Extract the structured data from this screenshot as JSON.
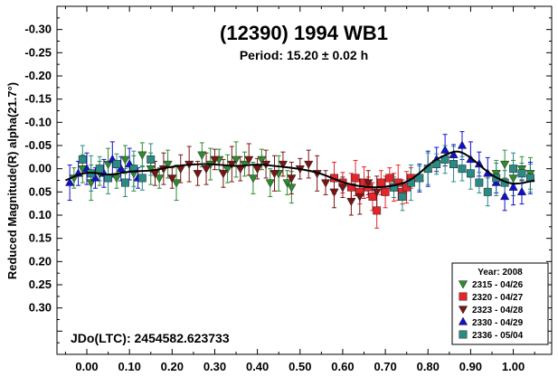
{
  "chart_data": {
    "type": "scatter",
    "title": "(12390) 1994 WB1",
    "subtitle": "Period: 15.20 ± 0.02 h",
    "ylabel": "Reduced Magnitude(R) alpha(21.7°)",
    "xlabel": "",
    "annotation": "JDo(LTC): 2454582.623733",
    "xlim": [
      -0.07,
      1.09
    ],
    "ylim": [
      -0.35,
      0.4
    ],
    "y_inverted": true,
    "x_ticks": [
      "0.00",
      "0.10",
      "0.20",
      "0.30",
      "0.40",
      "0.50",
      "0.60",
      "0.70",
      "0.80",
      "0.90",
      "1.00"
    ],
    "y_ticks": [
      "-0.30",
      "-0.25",
      "-0.20",
      "-0.15",
      "-0.10",
      "-0.05",
      "0.00",
      "0.05",
      "0.10",
      "0.15",
      "0.20",
      "0.25",
      "0.30"
    ],
    "grid": false,
    "legend_placement": "bottom-right",
    "legend_title": "Year: 2008",
    "series": [
      {
        "name": "2315 - 04/26",
        "marker": "triangle-down",
        "color": "#2e8b2e",
        "points": [
          [
            -0.03,
            0.02
          ],
          [
            -0.01,
            0.0
          ],
          [
            0.01,
            0.03
          ],
          [
            0.03,
            0.01
          ],
          [
            0.05,
            -0.01
          ],
          [
            0.07,
            0.02
          ],
          [
            0.09,
            -0.02
          ],
          [
            0.11,
            0.01
          ],
          [
            0.13,
            -0.03
          ],
          [
            0.15,
            0.0
          ],
          [
            0.17,
            0.02
          ],
          [
            0.19,
            -0.01
          ],
          [
            0.21,
            0.03
          ],
          [
            0.27,
            -0.03
          ],
          [
            0.29,
            -0.01
          ],
          [
            0.31,
            -0.02
          ],
          [
            0.33,
            0.0
          ],
          [
            0.35,
            -0.02
          ],
          [
            0.37,
            -0.01
          ],
          [
            0.39,
            0.02
          ],
          [
            0.41,
            -0.02
          ],
          [
            0.43,
            0.03
          ],
          [
            0.45,
            0.01
          ],
          [
            0.47,
            0.03
          ],
          [
            0.48,
            0.04
          ],
          [
            0.96,
            0.01
          ],
          [
            0.98,
            -0.01
          ],
          [
            1.0,
            0.02
          ],
          [
            1.02,
            0.0
          ],
          [
            1.04,
            0.01
          ]
        ]
      },
      {
        "name": "2320 - 04/27",
        "marker": "square",
        "color": "#e8242b",
        "points": [
          [
            0.58,
            0.02
          ],
          [
            0.6,
            0.03
          ],
          [
            0.62,
            0.04
          ],
          [
            0.63,
            0.02
          ],
          [
            0.64,
            0.05
          ],
          [
            0.65,
            0.03
          ],
          [
            0.66,
            0.04
          ],
          [
            0.67,
            0.06
          ],
          [
            0.68,
            0.09
          ],
          [
            0.69,
            0.03
          ],
          [
            0.7,
            0.05
          ],
          [
            0.71,
            0.02
          ],
          [
            0.72,
            0.04
          ],
          [
            0.73,
            0.03
          ],
          [
            0.74,
            0.05
          ],
          [
            0.75,
            0.04
          ],
          [
            0.76,
            0.02
          ]
        ]
      },
      {
        "name": "2323 - 04/28",
        "marker": "triangle-down",
        "color": "#7b1416",
        "points": [
          [
            0.16,
            0.01
          ],
          [
            0.18,
            0.0
          ],
          [
            0.2,
            0.02
          ],
          [
            0.22,
            0.0
          ],
          [
            0.24,
            -0.01
          ],
          [
            0.26,
            0.01
          ],
          [
            0.28,
            0.0
          ],
          [
            0.3,
            -0.02
          ],
          [
            0.32,
            0.01
          ],
          [
            0.34,
            -0.01
          ],
          [
            0.36,
            0.0
          ],
          [
            0.38,
            -0.02
          ],
          [
            0.4,
            0.0
          ],
          [
            0.42,
            -0.01
          ],
          [
            0.44,
            0.01
          ],
          [
            0.46,
            -0.01
          ],
          [
            0.48,
            0.02
          ],
          [
            0.5,
            0.0
          ],
          [
            0.52,
            -0.01
          ],
          [
            0.54,
            0.01
          ],
          [
            0.56,
            0.03
          ],
          [
            0.58,
            0.05
          ],
          [
            0.6,
            0.04
          ],
          [
            0.62,
            0.07
          ],
          [
            0.64,
            0.06
          ],
          [
            0.66,
            0.03
          ],
          [
            0.68,
            0.05
          ]
        ]
      },
      {
        "name": "2330 - 04/29",
        "marker": "triangle-up",
        "color": "#1010d0",
        "points": [
          [
            -0.04,
            0.03
          ],
          [
            -0.02,
            0.01
          ],
          [
            0.0,
            0.0
          ],
          [
            0.02,
            0.02
          ],
          [
            0.04,
            0.01
          ],
          [
            0.06,
            -0.02
          ],
          [
            0.08,
            0.0
          ],
          [
            0.1,
            -0.01
          ],
          [
            0.12,
            0.02
          ],
          [
            0.78,
            0.02
          ],
          [
            0.8,
            0.0
          ],
          [
            0.82,
            -0.02
          ],
          [
            0.84,
            -0.04
          ],
          [
            0.86,
            -0.03
          ],
          [
            0.88,
            -0.05
          ],
          [
            0.9,
            -0.02
          ],
          [
            0.92,
            -0.01
          ],
          [
            0.94,
            0.01
          ],
          [
            0.96,
            0.03
          ],
          [
            0.98,
            0.06
          ],
          [
            1.0,
            0.04
          ],
          [
            1.02,
            0.05
          ],
          [
            1.04,
            0.02
          ]
        ]
      },
      {
        "name": "2336 - 05/04",
        "marker": "square",
        "color": "#2a8a84",
        "points": [
          [
            -0.01,
            -0.02
          ],
          [
            0.01,
            0.01
          ],
          [
            0.03,
            0.0
          ],
          [
            0.05,
            0.02
          ],
          [
            0.07,
            -0.01
          ],
          [
            0.09,
            0.03
          ],
          [
            0.11,
            0.0
          ],
          [
            0.13,
            0.02
          ],
          [
            0.15,
            -0.02
          ],
          [
            0.72,
            0.04
          ],
          [
            0.74,
            0.06
          ],
          [
            0.76,
            0.03
          ],
          [
            0.78,
            0.02
          ],
          [
            0.8,
            0.0
          ],
          [
            0.82,
            -0.01
          ],
          [
            0.84,
            -0.02
          ],
          [
            0.86,
            -0.01
          ],
          [
            0.88,
            0.0
          ],
          [
            0.9,
            0.01
          ],
          [
            0.92,
            0.03
          ],
          [
            0.94,
            0.05
          ],
          [
            0.96,
            0.02
          ],
          [
            0.98,
            0.03
          ],
          [
            1.0,
            0.0
          ],
          [
            1.02,
            0.01
          ],
          [
            1.04,
            0.02
          ]
        ]
      }
    ],
    "fit_curve": {
      "x": [
        -0.05,
        0.0,
        0.05,
        0.1,
        0.15,
        0.2,
        0.25,
        0.3,
        0.35,
        0.4,
        0.45,
        0.5,
        0.55,
        0.6,
        0.65,
        0.7,
        0.75,
        0.78,
        0.81,
        0.84,
        0.87,
        0.9,
        0.93,
        0.96,
        1.0,
        1.05
      ],
      "y": [
        0.025,
        0.005,
        0.015,
        0.005,
        0.005,
        -0.005,
        -0.01,
        -0.01,
        -0.005,
        -0.01,
        -0.005,
        0.0,
        0.01,
        0.03,
        0.04,
        0.04,
        0.03,
        0.01,
        -0.015,
        -0.03,
        -0.04,
        -0.025,
        0.0,
        0.02,
        0.035,
        0.025
      ]
    }
  },
  "colors": {
    "axis": "#000000",
    "fit": "#000000"
  }
}
